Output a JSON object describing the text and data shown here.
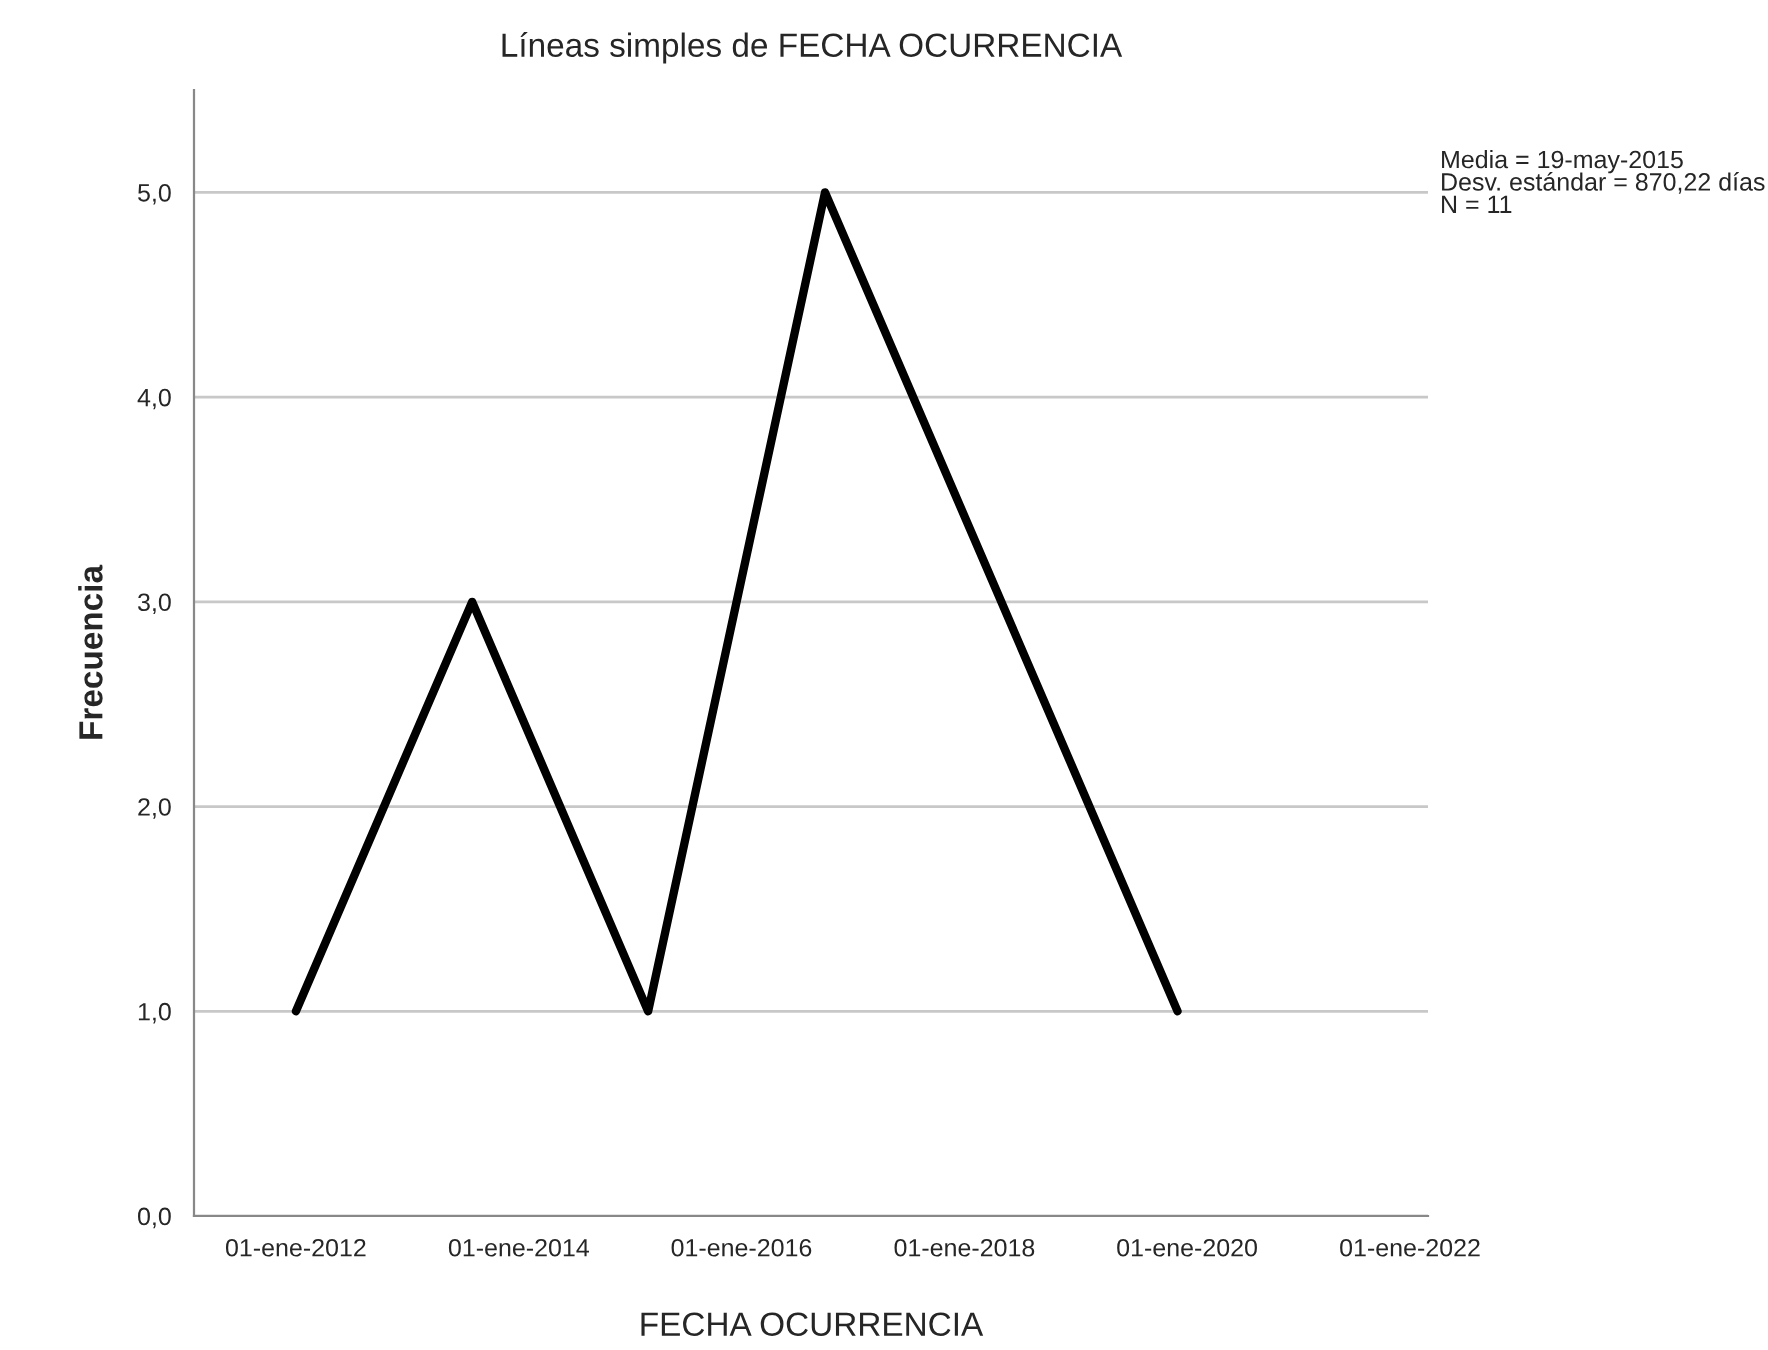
{
  "chart_data": {
    "type": "line",
    "title": "Líneas simples de FECHA OCURRENCIA",
    "xlabel": "FECHA OCURRENCIA",
    "ylabel": "Frecuencia",
    "x": [
      "2012-01",
      "2013-08",
      "2015-03",
      "2016-10",
      "2019-12"
    ],
    "series": [
      {
        "color": "#000000",
        "values": [
          1,
          3,
          1,
          5,
          1
        ]
      }
    ],
    "xlim": [
      "2011-02",
      "2022-03"
    ],
    "xticks": [
      {
        "value": "2012-01-01",
        "label": "01-ene-2012"
      },
      {
        "value": "2014-01-01",
        "label": "01-ene-2014"
      },
      {
        "value": "2016-01-01",
        "label": "01-ene-2016"
      },
      {
        "value": "2018-01-01",
        "label": "01-ene-2018"
      },
      {
        "value": "2020-01-01",
        "label": "01-ene-2020"
      },
      {
        "value": "2022-01-01",
        "label": "01-ene-2022"
      }
    ],
    "ylim": [
      0,
      5.5
    ],
    "yticks": [
      {
        "value": 0,
        "label": "0,0"
      },
      {
        "value": 1,
        "label": "1,0"
      },
      {
        "value": 2,
        "label": "2,0"
      },
      {
        "value": 3,
        "label": "3,0"
      },
      {
        "value": 4,
        "label": "4,0"
      },
      {
        "value": 5,
        "label": "5,0"
      }
    ],
    "grid": "y",
    "line_style": "solid",
    "annotations": [
      "Media = 19-may-2015\nDesv. estándar = 870,22 días\nN = 11"
    ]
  }
}
